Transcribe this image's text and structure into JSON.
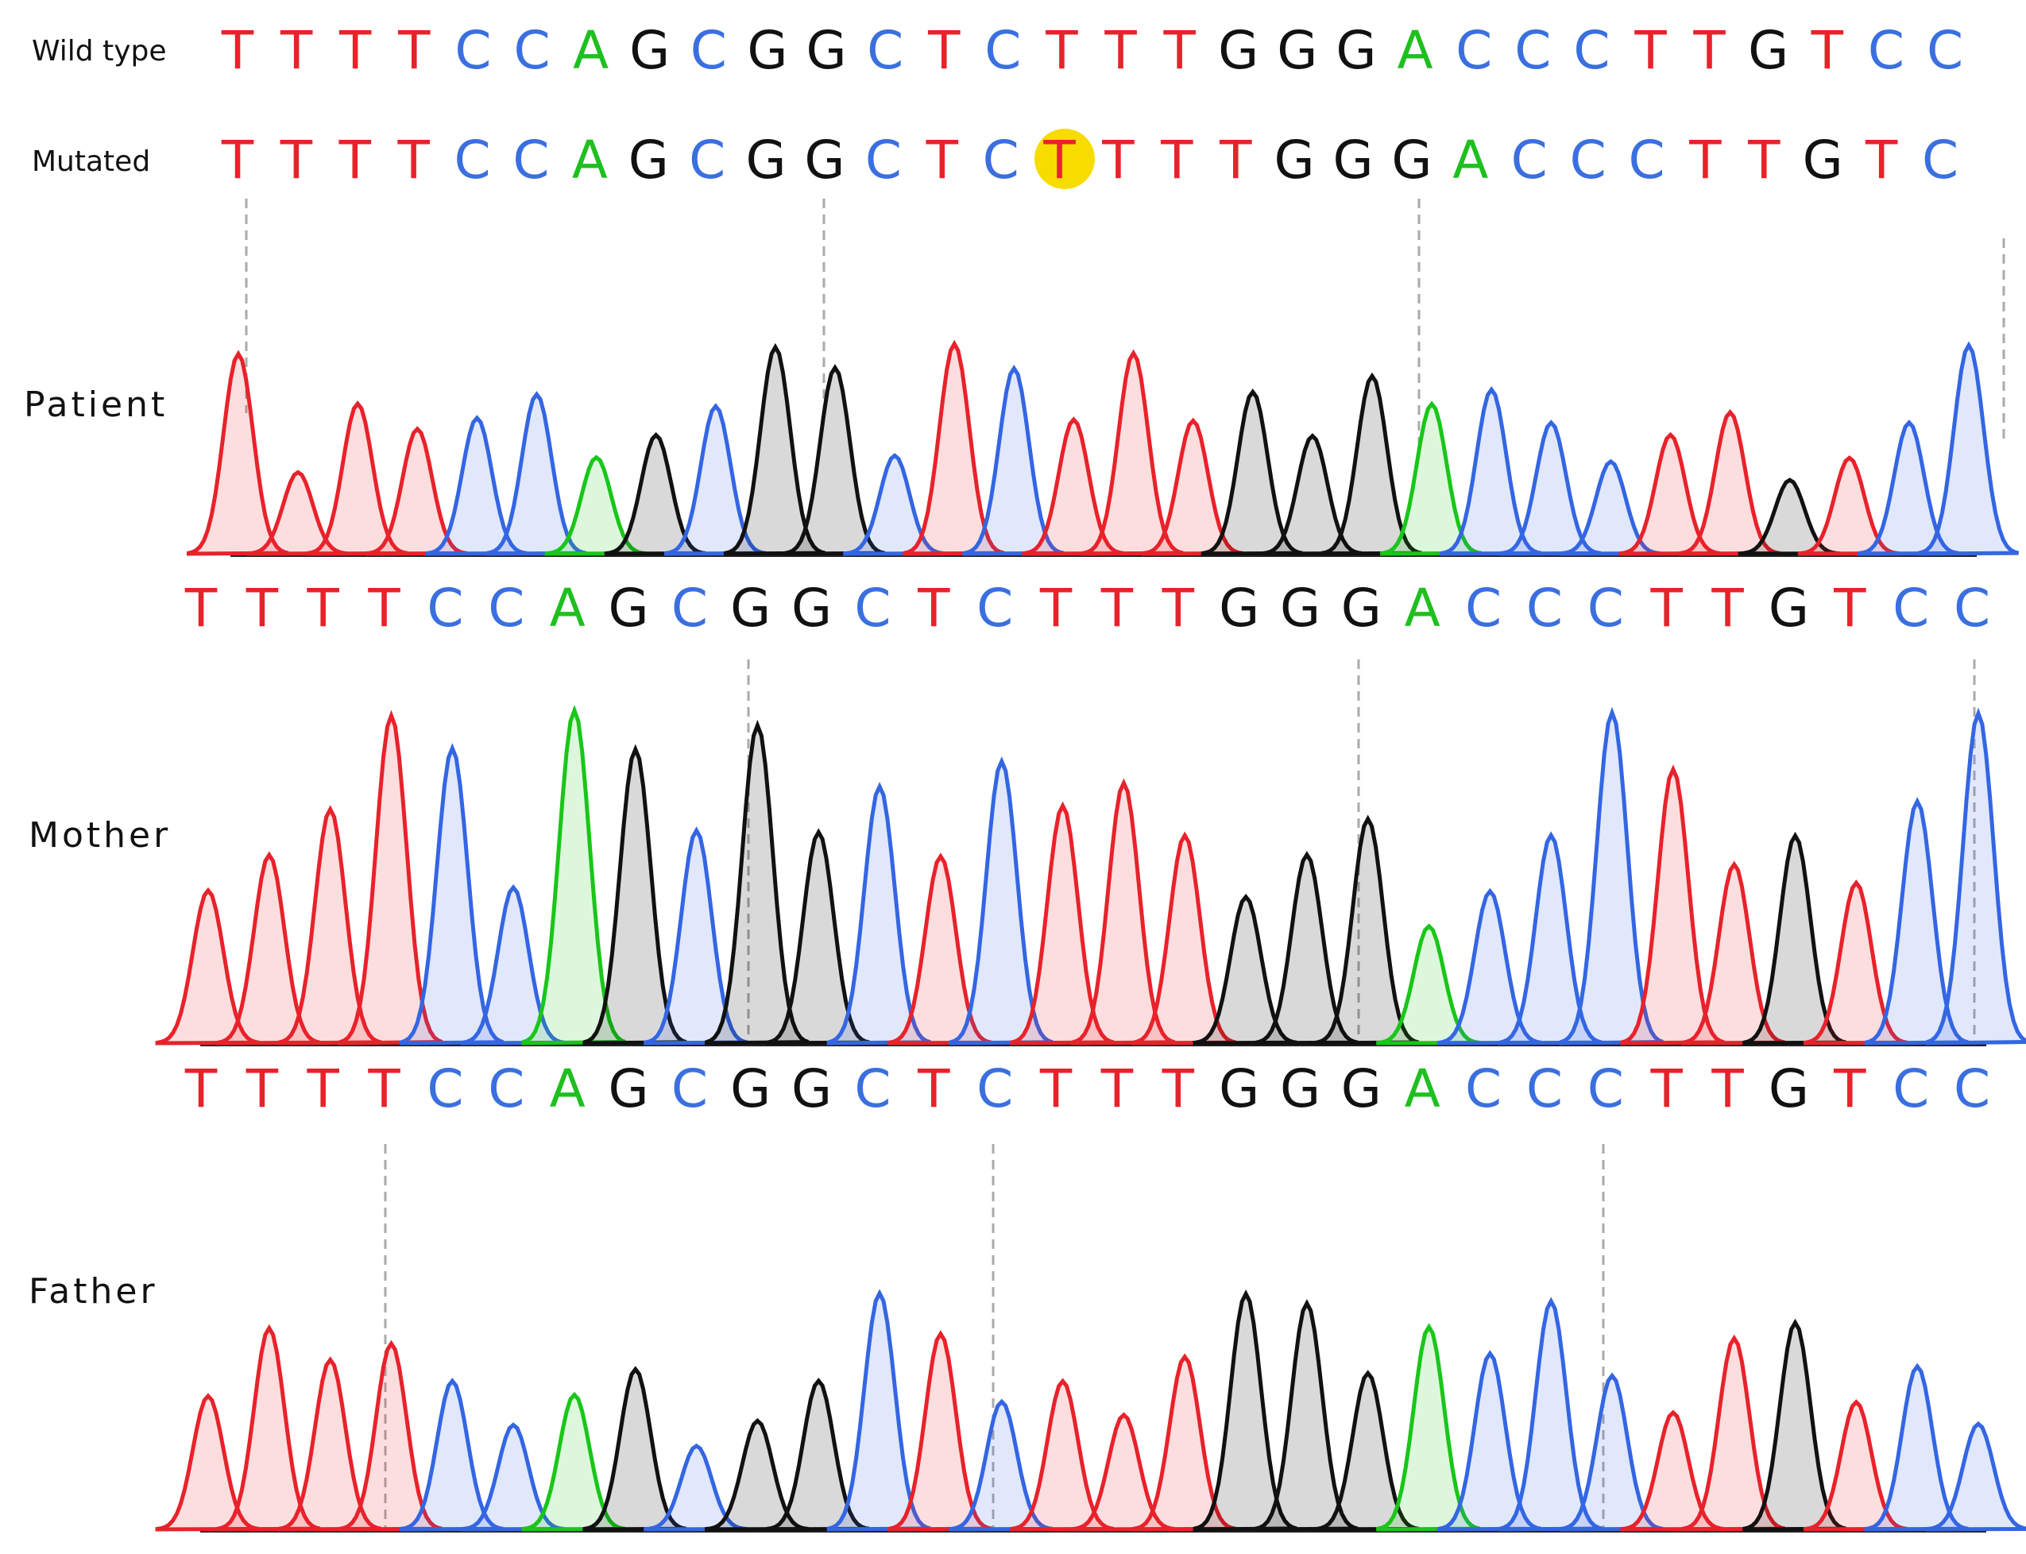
{
  "reference": {
    "wild_type": {
      "label": "Wild type",
      "bases": [
        "T",
        "T",
        "T",
        "T",
        "C",
        "C",
        "A",
        "G",
        "C",
        "G",
        "G",
        "C",
        "T",
        "C",
        "T",
        "T",
        "T",
        "G",
        "G",
        "G",
        "A",
        "C",
        "C",
        "C",
        "T",
        "T",
        "G",
        "T",
        "C",
        "C"
      ]
    },
    "mutated": {
      "label": "Mutated",
      "before": [
        "T",
        "T",
        "T",
        "T",
        "C",
        "C",
        "A",
        "G",
        "C",
        "G",
        "G",
        "C",
        "T",
        "C"
      ],
      "mutant": "T",
      "after": [
        "T",
        "T",
        "T",
        "G",
        "G",
        "G",
        "A",
        "C",
        "C",
        "C",
        "T",
        "T",
        "G",
        "T",
        "C"
      ]
    }
  },
  "panels": [
    {
      "label": "Patient"
    },
    {
      "label": "Mother"
    },
    {
      "label": "Father"
    }
  ],
  "sequence_rows": [
    {
      "bases": [
        "T",
        "T",
        "T",
        "T",
        "C",
        "C",
        "A",
        "G",
        "C",
        "G",
        "G",
        "C",
        "T",
        "C",
        "T",
        "T",
        "T",
        "G",
        "G",
        "G",
        "A",
        "C",
        "C",
        "C",
        "T",
        "T",
        "G",
        "T",
        "C",
        "C"
      ]
    },
    {
      "bases": [
        "T",
        "T",
        "T",
        "T",
        "C",
        "C",
        "A",
        "G",
        "C",
        "G",
        "G",
        "C",
        "T",
        "C",
        "T",
        "T",
        "T",
        "G",
        "G",
        "G",
        "A",
        "C",
        "C",
        "C",
        "T",
        "T",
        "G",
        "T",
        "C",
        "C"
      ]
    }
  ]
}
